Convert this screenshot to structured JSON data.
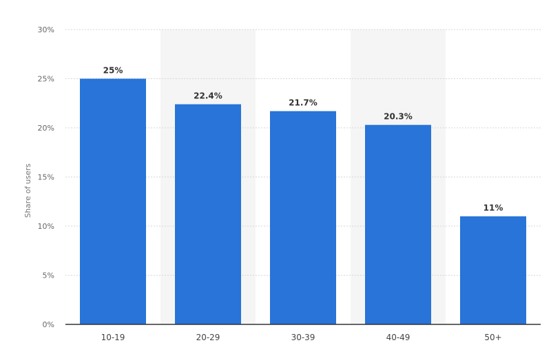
{
  "chart_data": {
    "type": "bar",
    "categories": [
      "10-19",
      "20-29",
      "30-39",
      "40-49",
      "50+"
    ],
    "values": [
      25,
      22.4,
      21.7,
      20.3,
      11
    ],
    "value_labels": [
      "25%",
      "22.4%",
      "21.7%",
      "20.3%",
      "11%"
    ],
    "title": "",
    "xlabel": "",
    "ylabel": "Share of users",
    "ylim": [
      0,
      30
    ],
    "yticks": [
      0,
      5,
      10,
      15,
      20,
      25,
      30
    ],
    "ytick_labels": [
      "0%",
      "5%",
      "10%",
      "15%",
      "20%",
      "25%",
      "30%"
    ],
    "grid": true,
    "legend": "none",
    "colors": {
      "bar": "#2874d8",
      "band": "#f5f5f5",
      "grid": "#d6d6d6",
      "axis": "#333333"
    }
  }
}
